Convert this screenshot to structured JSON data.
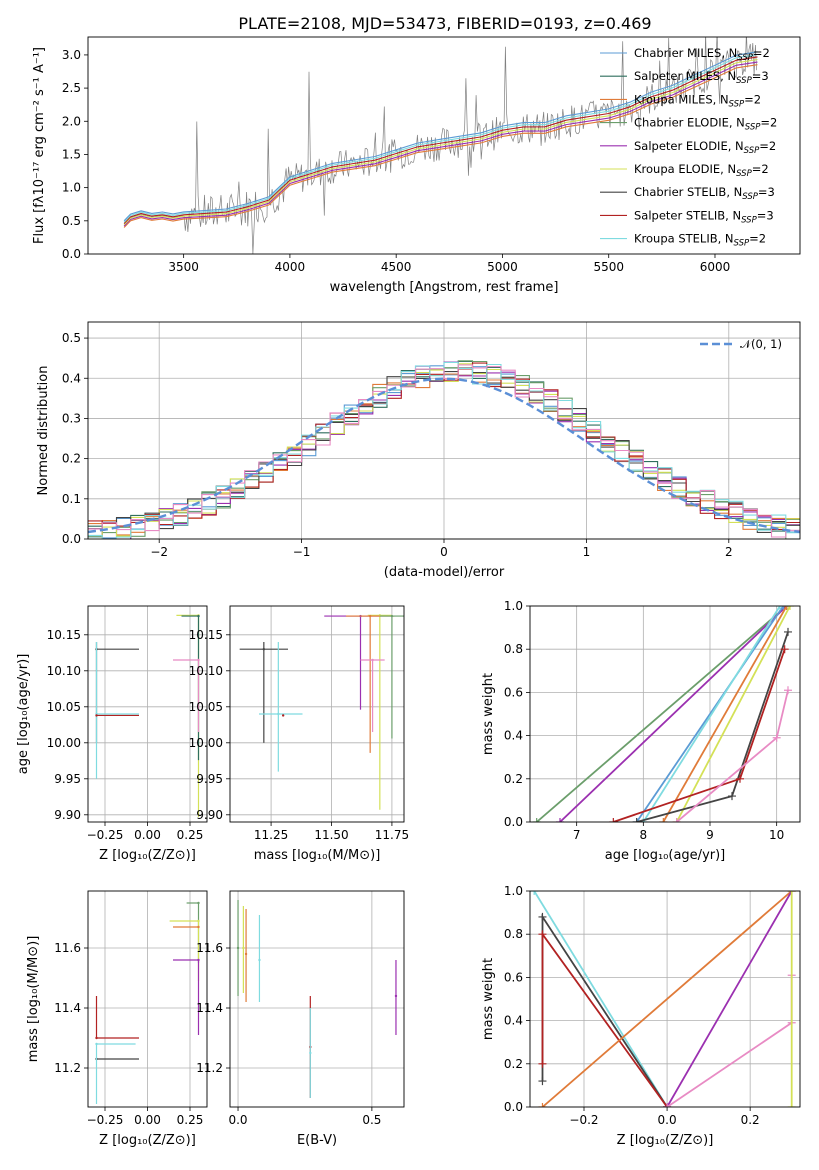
{
  "title": "PLATE=2108, MJD=53473, FIBERID=0193, z=0.469",
  "colors": {
    "chabrier_miles": "#5b9bd5",
    "salpeter_miles": "#2f6f5e",
    "kroupa_miles": "#e07b39",
    "chabrier_elodie": "#6b9e6b",
    "salpeter_elodie": "#9b30b0",
    "kroupa_elodie": "#d4e157",
    "chabrier_stelib": "#444444",
    "salpeter_stelib": "#b22222",
    "kroupa_stelib": "#7fdbe0",
    "data": "#808080",
    "normal": "#5b8fd6",
    "pink": "#e88bc4"
  },
  "chart_data": [
    {
      "id": "spectrum",
      "type": "line",
      "xlabel": "wavelength [Angstrom, rest frame]",
      "ylabel": "Flux [fλ10⁻¹⁷ erg cm⁻² s⁻¹ A⁻¹]",
      "xlim": [
        3050,
        6400
      ],
      "ylim": [
        0,
        3.27
      ],
      "xticks": [
        3500,
        4000,
        4500,
        5000,
        5500,
        6000
      ],
      "yticks": [
        0.0,
        0.5,
        1.0,
        1.5,
        2.0,
        2.5,
        3.0
      ],
      "legend_position": "top-right",
      "legend": [
        {
          "name": "Chabrier MILES, N",
          "sub": "SSP",
          "tail": "=2",
          "color": "chabrier_miles"
        },
        {
          "name": "Salpeter MILES, N",
          "sub": "SSP",
          "tail": "=3",
          "color": "salpeter_miles"
        },
        {
          "name": "Kroupa MILES, N",
          "sub": "SSP",
          "tail": "=2",
          "color": "kroupa_miles"
        },
        {
          "name": "Chabrier ELODIE, N",
          "sub": "SSP",
          "tail": "=2",
          "color": "chabrier_elodie"
        },
        {
          "name": "Salpeter ELODIE, N",
          "sub": "SSP",
          "tail": "=2",
          "color": "salpeter_elodie"
        },
        {
          "name": "Kroupa ELODIE, N",
          "sub": "SSP",
          "tail": "=2",
          "color": "kroupa_elodie"
        },
        {
          "name": "Chabrier STELIB, N",
          "sub": "SSP",
          "tail": "=3",
          "color": "chabrier_stelib"
        },
        {
          "name": "Salpeter STELIB, N",
          "sub": "SSP",
          "tail": "=3",
          "color": "salpeter_stelib"
        },
        {
          "name": "Kroupa STELIB, N",
          "sub": "SSP",
          "tail": "=2",
          "color": "kroupa_stelib"
        }
      ],
      "model_x": [
        3220,
        3250,
        3300,
        3350,
        3400,
        3450,
        3500,
        3600,
        3700,
        3800,
        3900,
        3950,
        4000,
        4050,
        4100,
        4200,
        4300,
        4400,
        4500,
        4600,
        4700,
        4800,
        4900,
        5000,
        5100,
        5200,
        5300,
        5400,
        5500,
        5600,
        5700,
        5800,
        5900,
        6000,
        6100,
        6200
      ],
      "model_y": [
        0.45,
        0.55,
        0.6,
        0.56,
        0.58,
        0.55,
        0.58,
        0.6,
        0.62,
        0.7,
        0.8,
        0.95,
        1.1,
        1.15,
        1.2,
        1.3,
        1.35,
        1.4,
        1.5,
        1.6,
        1.65,
        1.7,
        1.75,
        1.85,
        1.9,
        1.9,
        2.0,
        2.05,
        2.1,
        2.2,
        2.35,
        2.45,
        2.6,
        2.75,
        2.9,
        2.95
      ]
    },
    {
      "id": "residuals",
      "type": "bar",
      "xlabel": "(data-model)/error",
      "ylabel": "Normed distribution",
      "xlim": [
        -2.5,
        2.5
      ],
      "ylim": [
        0,
        0.54
      ],
      "xticks": [
        -2,
        -1,
        0,
        1,
        2
      ],
      "yticks": [
        0.0,
        0.1,
        0.2,
        0.3,
        0.4,
        0.5
      ],
      "legend_label": "𝒩(0, 1)",
      "bin_width": 0.1
    },
    {
      "id": "age-vs-Z",
      "type": "scatter",
      "xlabel": "Z [log₁₀(Z/Z⊙)]",
      "ylabel": "age  [log₁₀(age/yr)]",
      "xlim": [
        -0.35,
        0.35
      ],
      "ylim": [
        9.89,
        10.19
      ],
      "xticks": [
        -0.25,
        0.0,
        0.25
      ],
      "xtick_labels": [
        "−0.25",
        "0.00",
        "0.25"
      ],
      "yticks": [
        9.9,
        9.95,
        10.0,
        10.05,
        10.1,
        10.15
      ],
      "points": [
        {
          "x": -0.3,
          "y": 10.13,
          "xerr": [
            0.0,
            0.25
          ],
          "yerr": [
            0.13,
            0.01
          ],
          "color": "chabrier_stelib"
        },
        {
          "x": -0.3,
          "y": 10.04,
          "xerr": [
            0.0,
            0.25
          ],
          "yerr": [
            0.09,
            0.1
          ],
          "color": "kroupa_stelib"
        },
        {
          "x": -0.3,
          "y": 10.038,
          "xerr": [
            0.0,
            0.25
          ],
          "yerr": [
            0.0,
            0.0
          ],
          "color": "salpeter_stelib"
        },
        {
          "x": 0.3,
          "y": 10.177,
          "xerr": [
            0.13,
            0.0
          ],
          "yerr": [
            0.28,
            0.0
          ],
          "color": "kroupa_elodie"
        },
        {
          "x": 0.3,
          "y": 10.176,
          "xerr": [
            0.1,
            0.0
          ],
          "yerr": [
            0.2,
            0.0
          ],
          "color": "salpeter_miles"
        },
        {
          "x": 0.3,
          "y": 10.115,
          "xerr": [
            0.15,
            0.0
          ],
          "yerr": [
            0.1,
            0.0
          ],
          "color": "pink"
        }
      ]
    },
    {
      "id": "age-vs-mass",
      "type": "scatter",
      "xlabel": "mass [log₁₀(M/M⊙)]",
      "xlim": [
        11.08,
        11.8
      ],
      "ylim": [
        9.89,
        10.19
      ],
      "xticks": [
        11.25,
        11.5,
        11.75
      ],
      "yticks": [
        9.9,
        9.95,
        10.0,
        10.05,
        10.1,
        10.15
      ],
      "points": [
        {
          "x": 11.22,
          "y": 10.13,
          "xerr": [
            0.1,
            0.1
          ],
          "yerr": [
            0.13,
            0.01
          ],
          "color": "chabrier_stelib"
        },
        {
          "x": 11.28,
          "y": 10.04,
          "xerr": [
            0.08,
            0.1
          ],
          "yerr": [
            0.08,
            0.1
          ],
          "color": "kroupa_stelib"
        },
        {
          "x": 11.3,
          "y": 10.038,
          "xerr": [
            0.0,
            0.0
          ],
          "yerr": [
            0.0,
            0.0
          ],
          "color": "salpeter_stelib"
        },
        {
          "x": 11.62,
          "y": 10.176,
          "xerr": [
            0.15,
            0.08
          ],
          "yerr": [
            0.13,
            0.0
          ],
          "color": "salpeter_elodie"
        },
        {
          "x": 11.7,
          "y": 10.177,
          "xerr": [
            0.05,
            0.05
          ],
          "yerr": [
            0.27,
            0.0
          ],
          "color": "kroupa_elodie"
        },
        {
          "x": 11.66,
          "y": 10.176,
          "xerr": [
            0.1,
            0.1
          ],
          "yerr": [
            0.19,
            0.0
          ],
          "color": "kroupa_miles"
        },
        {
          "x": 11.75,
          "y": 10.176,
          "xerr": [
            0.05,
            0.05
          ],
          "yerr": [
            0.17,
            0.0
          ],
          "color": "chabrier_elodie"
        },
        {
          "x": 11.67,
          "y": 10.115,
          "xerr": [
            0.05,
            0.05
          ],
          "yerr": [
            0.1,
            0.0
          ],
          "color": "pink"
        }
      ]
    },
    {
      "id": "massweight-vs-age",
      "type": "line",
      "xlabel": "age  [log₁₀(age/yr)]",
      "ylabel": "mass weight",
      "xlim": [
        6.3,
        10.35
      ],
      "ylim": [
        0,
        1.0
      ],
      "xticks": [
        7,
        8,
        9,
        10
      ],
      "yticks": [
        0.0,
        0.2,
        0.4,
        0.6,
        0.8,
        1.0
      ],
      "lines": [
        {
          "color": "chabrier_elodie",
          "x": [
            6.4,
            10.15
          ],
          "y": [
            0.0,
            1.0
          ]
        },
        {
          "color": "salpeter_elodie",
          "x": [
            6.75,
            10.15
          ],
          "y": [
            0.0,
            1.0
          ]
        },
        {
          "color": "chabrier_miles",
          "x": [
            7.9,
            10.1
          ],
          "y": [
            0.0,
            1.0
          ]
        },
        {
          "color": "kroupa_stelib",
          "x": [
            8.0,
            10.05
          ],
          "y": [
            0.0,
            1.0
          ]
        },
        {
          "color": "kroupa_miles",
          "x": [
            8.3,
            10.15
          ],
          "y": [
            0.0,
            1.0
          ]
        },
        {
          "color": "kroupa_elodie",
          "x": [
            8.5,
            10.2
          ],
          "y": [
            0.0,
            1.0
          ]
        },
        {
          "color": "chabrier_stelib",
          "x": [
            7.9,
            9.33,
            10.17
          ],
          "y": [
            0.0,
            0.12,
            0.88
          ]
        },
        {
          "color": "salpeter_stelib",
          "x": [
            7.55,
            9.45,
            10.12
          ],
          "y": [
            0.0,
            0.2,
            0.8
          ]
        },
        {
          "color": "pink",
          "x": [
            8.5,
            10.0,
            10.17
          ],
          "y": [
            0.0,
            0.39,
            0.61
          ]
        }
      ]
    },
    {
      "id": "mass-vs-Z",
      "type": "scatter",
      "xlabel": "Z [log₁₀(Z/Z⊙)]",
      "ylabel": "mass [log₁₀(M/M⊙)]",
      "xlim": [
        -0.35,
        0.35
      ],
      "ylim": [
        11.07,
        11.79
      ],
      "xticks": [
        -0.25,
        0.0,
        0.25
      ],
      "xtick_labels": [
        "−0.25",
        "0.00",
        "0.25"
      ],
      "yticks": [
        11.2,
        11.4,
        11.6
      ],
      "points": [
        {
          "x": -0.3,
          "y": 11.23,
          "xerr": [
            0.0,
            0.25
          ],
          "yerr": [
            0.0,
            0.0
          ],
          "color": "chabrier_stelib"
        },
        {
          "x": -0.3,
          "y": 11.28,
          "xerr": [
            0.0,
            0.23
          ],
          "yerr": [
            0.2,
            0.0
          ],
          "color": "kroupa_stelib"
        },
        {
          "x": -0.3,
          "y": 11.3,
          "xerr": [
            0.0,
            0.25
          ],
          "yerr": [
            0.0,
            0.14
          ],
          "color": "salpeter_stelib"
        },
        {
          "x": 0.3,
          "y": 11.75,
          "xerr": [
            0.07,
            0.0
          ],
          "yerr": [
            0.2,
            0.0
          ],
          "color": "chabrier_elodie"
        },
        {
          "x": 0.3,
          "y": 11.69,
          "xerr": [
            0.17,
            0.0
          ],
          "yerr": [
            0.2,
            0.0
          ],
          "color": "kroupa_elodie"
        },
        {
          "x": 0.3,
          "y": 11.67,
          "xerr": [
            0.15,
            0.0
          ],
          "yerr": [
            0.0,
            0.0
          ],
          "color": "kroupa_miles"
        },
        {
          "x": 0.3,
          "y": 11.56,
          "xerr": [
            0.15,
            0.0
          ],
          "yerr": [
            0.25,
            0.0
          ],
          "color": "salpeter_elodie"
        }
      ]
    },
    {
      "id": "mass-vs-ebv",
      "type": "scatter",
      "xlabel": "E(B-V)",
      "xlim": [
        -0.03,
        0.62
      ],
      "ylim": [
        11.07,
        11.79
      ],
      "xticks": [
        0.0,
        0.5
      ],
      "yticks": [
        11.2,
        11.4,
        11.6
      ],
      "points": [
        {
          "x": 0.0,
          "y": 11.6,
          "yerr": [
            0.16,
            0.16
          ],
          "color": "chabrier_elodie"
        },
        {
          "x": 0.02,
          "y": 11.6,
          "yerr": [
            0.15,
            0.14
          ],
          "color": "kroupa_elodie"
        },
        {
          "x": 0.03,
          "y": 11.58,
          "yerr": [
            0.16,
            0.15
          ],
          "color": "kroupa_miles"
        },
        {
          "x": 0.08,
          "y": 11.56,
          "yerr": [
            0.14,
            0.15
          ],
          "color": "kroupa_stelib"
        },
        {
          "x": 0.27,
          "y": 11.27,
          "yerr": [
            0.17,
            0.17
          ],
          "color": "salpeter_stelib"
        },
        {
          "x": 0.27,
          "y": 11.25,
          "yerr": [
            0.15,
            0.15
          ],
          "color": "kroupa_stelib"
        },
        {
          "x": 0.59,
          "y": 11.44,
          "yerr": [
            0.13,
            0.12
          ],
          "color": "salpeter_elodie"
        }
      ]
    },
    {
      "id": "massweight-vs-Z",
      "type": "line",
      "xlabel": "Z [log₁₀(Z/Z⊙)]",
      "ylabel": "mass weight",
      "xlim": [
        -0.33,
        0.32
      ],
      "ylim": [
        0,
        1.0
      ],
      "xticks": [
        -0.2,
        0.0,
        0.2
      ],
      "xtick_labels": [
        "−0.2",
        "0.0",
        "0.2"
      ],
      "yticks": [
        0.0,
        0.2,
        0.4,
        0.6,
        0.8,
        1.0
      ],
      "lines": [
        {
          "color": "kroupa_stelib",
          "x": [
            -0.32,
            0.0
          ],
          "y": [
            1.0,
            0.0
          ]
        },
        {
          "color": "chabrier_stelib",
          "x": [
            -0.3,
            -0.3,
            0.0
          ],
          "y": [
            0.12,
            0.88,
            0.0
          ]
        },
        {
          "color": "salpeter_stelib",
          "x": [
            -0.3,
            -0.3,
            0.0
          ],
          "y": [
            0.2,
            0.8,
            0.0
          ]
        },
        {
          "color": "kroupa_miles",
          "x": [
            -0.3,
            0.3
          ],
          "y": [
            0.0,
            1.0
          ]
        },
        {
          "color": "salpeter_elodie",
          "x": [
            0.0,
            0.3
          ],
          "y": [
            0.0,
            1.0
          ]
        },
        {
          "color": "pink",
          "x": [
            0.0,
            0.3,
            0.3
          ],
          "y": [
            0.0,
            0.39,
            0.61
          ]
        },
        {
          "color": "kroupa_elodie",
          "x": [
            0.3,
            0.3
          ],
          "y": [
            0.0,
            1.0
          ]
        }
      ]
    }
  ]
}
